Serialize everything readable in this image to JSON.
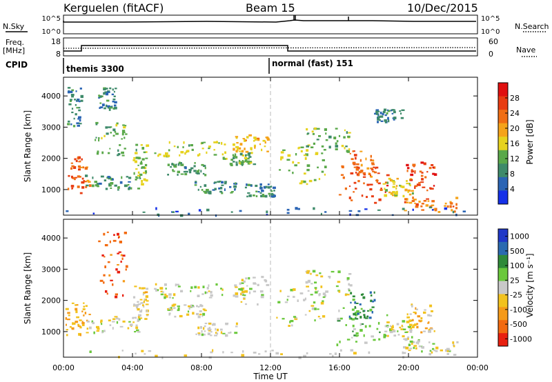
{
  "header": {
    "station": "Kerguelen (fitACF)",
    "beam": "Beam 15",
    "date": "10/Dec/2015"
  },
  "top_panels": {
    "nsky_label": "N.Sky",
    "nsearch_label": "N.Search",
    "noise_left_ticks": [
      "10^5",
      "10^0"
    ],
    "noise_right_ticks": [
      "10^5",
      "10^0"
    ],
    "freq_label_1": "Freq.",
    "freq_label_2": "[MHz]",
    "freq_ticks": [
      "18",
      "8"
    ],
    "nave_label": "Nave",
    "nave_ticks": [
      "60",
      "0"
    ],
    "cpid_label": "CPID",
    "cpid_1": "themis 3300",
    "cpid_2": "normal (fast) 151"
  },
  "colors": {
    "power_scale": [
      "#1530e8",
      "#2a64b4",
      "#3e8a6a",
      "#5aa84a",
      "#e6d21e",
      "#f5a31a",
      "#f06e14",
      "#e83c12",
      "#e01010"
    ],
    "velocity_scale": [
      "#2038c8",
      "#2a6ab0",
      "#2f8a3a",
      "#6ac83c",
      "#c8c8c8",
      "#f2c21e",
      "#f59a1a",
      "#f26a10",
      "#e82010"
    ]
  },
  "chart_data": [
    {
      "type": "heatmap",
      "title": "Power",
      "ylabel": "Slant Range [km]",
      "xlabel": "Time UT",
      "xlim": [
        0,
        24
      ],
      "ylim": [
        180,
        4600
      ],
      "x_ticks": [
        "00:00",
        "04:00",
        "08:00",
        "12:00",
        "16:00",
        "20:00",
        "00:00"
      ],
      "y_ticks": [
        "1000",
        "2000",
        "3000",
        "4000"
      ],
      "colorbar": {
        "label": "Power [dB]",
        "range": [
          0,
          32
        ],
        "ticks": [
          "4",
          "8",
          "12",
          "16",
          "20",
          "24",
          "28"
        ]
      },
      "regions": [
        {
          "t": [
            0.1,
            1.5
          ],
          "r": [
            900,
            2100
          ],
          "v": 24
        },
        {
          "t": [
            0.2,
            1.0
          ],
          "r": [
            3000,
            4300
          ],
          "v": 8
        },
        {
          "t": [
            1.2,
            4.4
          ],
          "r": [
            1000,
            1500
          ],
          "v": 10
        },
        {
          "t": [
            1.8,
            3.6
          ],
          "r": [
            2100,
            3200
          ],
          "v": 12
        },
        {
          "t": [
            4.0,
            4.8
          ],
          "r": [
            1200,
            2500
          ],
          "v": 14
        },
        {
          "t": [
            2.0,
            3.0
          ],
          "r": [
            3600,
            4300
          ],
          "v": 8
        },
        {
          "t": [
            5.2,
            9.4
          ],
          "r": [
            2100,
            2600
          ],
          "v": 14
        },
        {
          "t": [
            6.0,
            8.2
          ],
          "r": [
            1500,
            1900
          ],
          "v": 10
        },
        {
          "t": [
            7.5,
            10.0
          ],
          "r": [
            900,
            1300
          ],
          "v": 9
        },
        {
          "t": [
            9.2,
            11.0
          ],
          "r": [
            1800,
            2200
          ],
          "v": 12
        },
        {
          "t": [
            9.8,
            11.8
          ],
          "r": [
            2200,
            2800
          ],
          "v": 18
        },
        {
          "t": [
            10.5,
            12.2
          ],
          "r": [
            800,
            1200
          ],
          "v": 8
        },
        {
          "t": [
            12.3,
            15.2
          ],
          "r": [
            1200,
            2400
          ],
          "v": 14
        },
        {
          "t": [
            14.0,
            16.6
          ],
          "r": [
            2200,
            3000
          ],
          "v": 12
        },
        {
          "t": [
            15.8,
            18.8
          ],
          "r": [
            600,
            1800
          ],
          "v": 26
        },
        {
          "t": [
            16.5,
            18.0
          ],
          "r": [
            1400,
            2300
          ],
          "v": 24
        },
        {
          "t": [
            18.5,
            20.2
          ],
          "r": [
            800,
            1400
          ],
          "v": 16
        },
        {
          "t": [
            19.8,
            21.5
          ],
          "r": [
            1000,
            1900
          ],
          "v": 26
        },
        {
          "t": [
            19.6,
            22.8
          ],
          "r": [
            300,
            800
          ],
          "v": 22
        },
        {
          "t": [
            18.0,
            19.6
          ],
          "r": [
            3200,
            3600
          ],
          "v": 8
        },
        {
          "t": [
            0.0,
            24.0
          ],
          "r": [
            200,
            450
          ],
          "v": 6
        }
      ]
    },
    {
      "type": "heatmap",
      "title": "Velocity",
      "ylabel": "Slant Range [km]",
      "xlabel": "Time UT",
      "xlim": [
        0,
        24
      ],
      "ylim": [
        180,
        4600
      ],
      "x_ticks": [
        "00:00",
        "04:00",
        "08:00",
        "12:00",
        "16:00",
        "20:00",
        "00:00"
      ],
      "y_ticks": [
        "1000",
        "2000",
        "3000",
        "4000"
      ],
      "colorbar": {
        "label": "Velocity [m s⁻¹]",
        "range": [
          -1250,
          1250
        ],
        "ticks": [
          "1000",
          "500",
          "100",
          "25",
          "-25",
          "-100",
          "-500",
          "-1000"
        ]
      },
      "regions": [
        {
          "t": [
            0.1,
            1.5
          ],
          "r": [
            900,
            2100
          ],
          "v": -400
        },
        {
          "t": [
            2.0,
            3.6
          ],
          "r": [
            2000,
            4300
          ],
          "v": -900
        },
        {
          "t": [
            1.2,
            4.4
          ],
          "r": [
            1000,
            1500
          ],
          "v": 0
        },
        {
          "t": [
            4.0,
            4.8
          ],
          "r": [
            1200,
            2500
          ],
          "v": -150
        },
        {
          "t": [
            5.2,
            9.4
          ],
          "r": [
            2100,
            2600
          ],
          "v": 0
        },
        {
          "t": [
            6.0,
            8.2
          ],
          "r": [
            1500,
            1900
          ],
          "v": 0
        },
        {
          "t": [
            7.5,
            10.0
          ],
          "r": [
            900,
            1300
          ],
          "v": -30
        },
        {
          "t": [
            9.8,
            11.8
          ],
          "r": [
            1900,
            2800
          ],
          "v": 0
        },
        {
          "t": [
            12.3,
            15.2
          ],
          "r": [
            1200,
            2400
          ],
          "v": 50
        },
        {
          "t": [
            14.0,
            16.6
          ],
          "r": [
            2200,
            3000
          ],
          "v": 0
        },
        {
          "t": [
            15.8,
            18.8
          ],
          "r": [
            600,
            1800
          ],
          "v": 200
        },
        {
          "t": [
            16.5,
            18.0
          ],
          "r": [
            1400,
            2300
          ],
          "v": 600
        },
        {
          "t": [
            18.5,
            20.2
          ],
          "r": [
            800,
            1400
          ],
          "v": 0
        },
        {
          "t": [
            19.8,
            21.5
          ],
          "r": [
            1000,
            1900
          ],
          "v": -300
        },
        {
          "t": [
            19.6,
            22.8
          ],
          "r": [
            300,
            800
          ],
          "v": 0
        },
        {
          "t": [
            0.0,
            24.0
          ],
          "r": [
            200,
            450
          ],
          "v": -40
        }
      ]
    }
  ]
}
